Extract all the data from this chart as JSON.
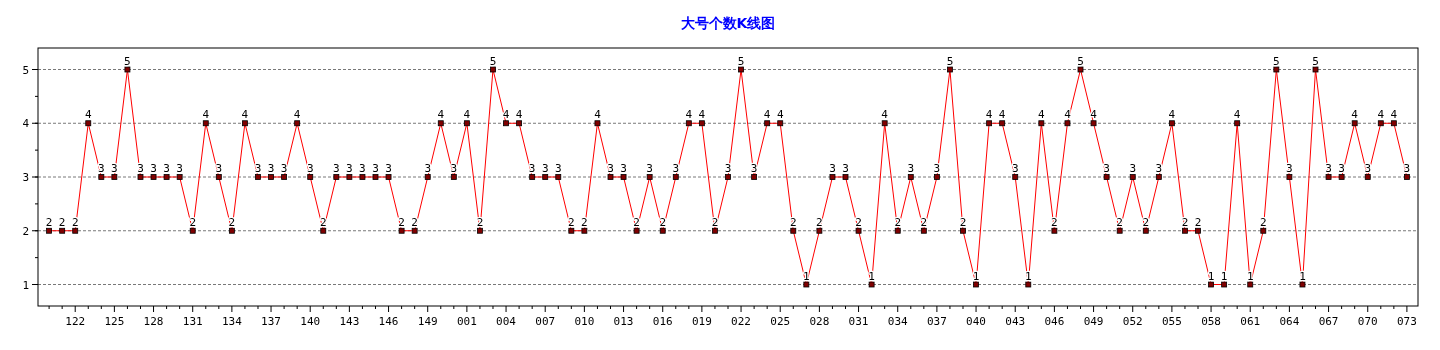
{
  "chart_data": {
    "type": "line",
    "title": "大号个数K线图",
    "categories": [
      null,
      null,
      "122",
      null,
      null,
      "125",
      null,
      null,
      "128",
      null,
      null,
      "131",
      null,
      null,
      "134",
      null,
      null,
      "137",
      null,
      null,
      "140",
      null,
      null,
      "143",
      null,
      null,
      "146",
      null,
      null,
      "149",
      null,
      null,
      "001",
      null,
      null,
      "004",
      null,
      null,
      "007",
      null,
      null,
      "010",
      null,
      null,
      "013",
      null,
      null,
      "016",
      null,
      null,
      "019",
      null,
      null,
      "022",
      null,
      null,
      "025",
      null,
      null,
      "028",
      null,
      null,
      "031",
      null,
      null,
      "034",
      null,
      null,
      "037",
      null,
      null,
      "040",
      null,
      null,
      "043",
      null,
      null,
      "046",
      null,
      null,
      "049",
      null,
      null,
      "052",
      null,
      null,
      "055",
      null,
      null,
      "058",
      null,
      null,
      "061",
      null,
      null,
      "064",
      null,
      null,
      "067",
      null,
      null,
      "070",
      null,
      null,
      "073"
    ],
    "series": [
      {
        "color": "#ff0000",
        "values": [
          2,
          2,
          2,
          4,
          3,
          3,
          5,
          3,
          3,
          3,
          3,
          2,
          4,
          3,
          2,
          4,
          3,
          3,
          3,
          4,
          3,
          2,
          3,
          3,
          3,
          3,
          3,
          2,
          2,
          3,
          4,
          3,
          4,
          2,
          5,
          4,
          4,
          3,
          3,
          3,
          2,
          2,
          4,
          3,
          3,
          2,
          3,
          2,
          3,
          4,
          4,
          2,
          3,
          5,
          3,
          4,
          4,
          2,
          1,
          2,
          3,
          3,
          2,
          1,
          4,
          2,
          3,
          2,
          3,
          5,
          2,
          1,
          4,
          4,
          3,
          1,
          4,
          2,
          4,
          5,
          4,
          3,
          2,
          3,
          2,
          3,
          4,
          2,
          2,
          1,
          1,
          4,
          1,
          2,
          5,
          3,
          1,
          5,
          3,
          3,
          4,
          3,
          4,
          4,
          3
        ]
      }
    ],
    "ylim": [
      0.6,
      5.4
    ],
    "yticks": [
      1,
      2,
      3,
      4,
      5
    ],
    "grid": "y",
    "marker": "square",
    "line_style": "solid",
    "data_labels": true
  }
}
